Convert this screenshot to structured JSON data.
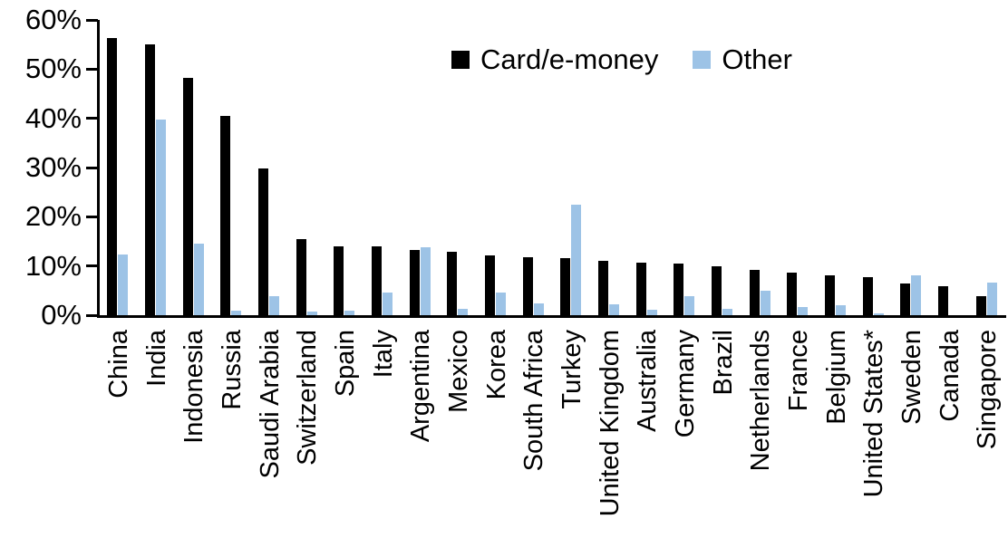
{
  "chart_data": {
    "type": "bar",
    "title": "",
    "xlabel": "",
    "ylabel": "",
    "ylim": [
      0,
      60
    ],
    "ytick_step": 10,
    "ytick_labels": [
      "0%",
      "10%",
      "20%",
      "30%",
      "40%",
      "50%",
      "60%"
    ],
    "grid": false,
    "legend_position": "top-center",
    "categories": [
      "China",
      "India",
      "Indonesia",
      "Russia",
      "Saudi Arabia",
      "Switzerland",
      "Spain",
      "Italy",
      "Argentina",
      "Mexico",
      "Korea",
      "South Africa",
      "Turkey",
      "United Kingdom",
      "Australia",
      "Germany",
      "Brazil",
      "Netherlands",
      "France",
      "Belgium",
      "United States*",
      "Sweden",
      "Canada",
      "Singapore"
    ],
    "series": [
      {
        "name": "Card/e-money",
        "color": "#000000",
        "values": [
          56.3,
          55.0,
          48.3,
          40.5,
          29.8,
          15.5,
          14.0,
          14.0,
          13.3,
          12.9,
          12.2,
          11.7,
          11.6,
          11.0,
          10.7,
          10.5,
          9.9,
          9.2,
          8.6,
          8.1,
          7.8,
          6.5,
          5.9,
          3.9
        ]
      },
      {
        "name": "Other",
        "color": "#9DC3E6",
        "values": [
          12.3,
          39.7,
          14.5,
          0.9,
          3.8,
          0.7,
          1.0,
          4.6,
          13.8,
          1.3,
          4.6,
          2.4,
          22.5,
          2.3,
          1.1,
          3.9,
          1.3,
          4.9,
          1.6,
          2.0,
          0.3,
          8.1,
          0.0,
          6.6
        ]
      }
    ]
  },
  "colors": {
    "axis": "#000000",
    "background": "#FFFFFF"
  }
}
